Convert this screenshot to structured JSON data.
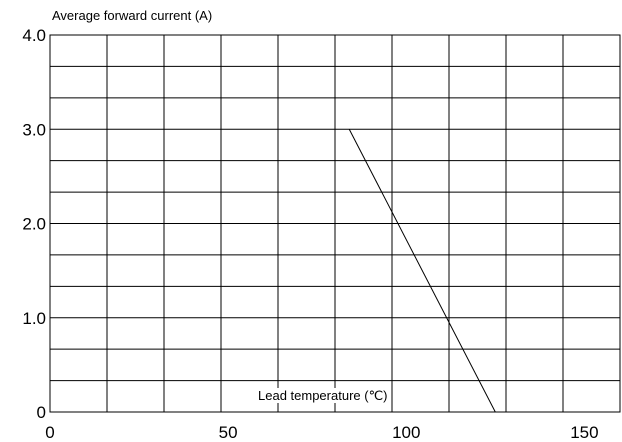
{
  "chart_data": {
    "type": "line",
    "ylabel": "Average forward current (A)",
    "xlabel": "Lead temperature (℃)",
    "xlim": [
      0,
      160
    ],
    "ylim": [
      0,
      4
    ],
    "x_ticks": [
      0,
      50,
      100,
      150
    ],
    "x_tick_labels": [
      "0",
      "50",
      "100",
      "150"
    ],
    "y_ticks": [
      0,
      1,
      2,
      3,
      4
    ],
    "y_tick_labels": [
      "0",
      "1.0",
      "2.0",
      "3.0",
      "4.0"
    ],
    "grid": true,
    "x_grid_step": 16,
    "y_grid_step": 0.3333,
    "series": [
      {
        "x": [
          84,
          125
        ],
        "y": [
          3.0,
          0.0
        ]
      }
    ]
  }
}
